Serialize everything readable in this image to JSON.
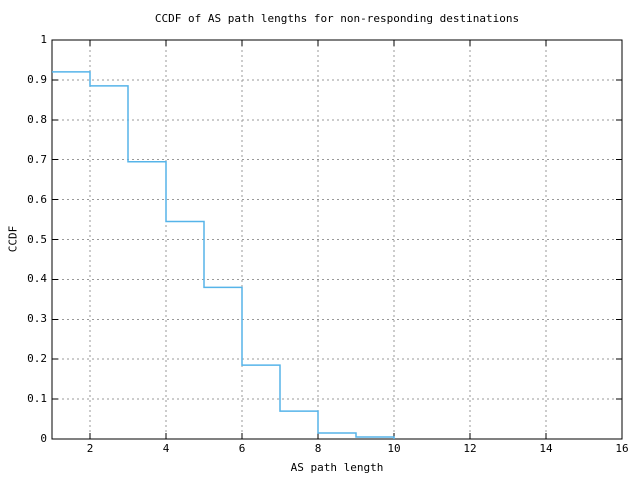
{
  "chart_data": {
    "type": "line",
    "style": "steps-post",
    "title": "CCDF of AS path lengths for non-responding destinations",
    "xlabel": "AS path length",
    "ylabel": "CCDF",
    "x": [
      1,
      2,
      3,
      4,
      5,
      6,
      7,
      8,
      9,
      10
    ],
    "y": [
      0.92,
      0.885,
      0.695,
      0.545,
      0.38,
      0.185,
      0.07,
      0.015,
      0.005,
      0
    ],
    "xlim": [
      1,
      16
    ],
    "ylim": [
      0,
      1
    ],
    "xticks": [
      2,
      4,
      6,
      8,
      10,
      12,
      14,
      16
    ],
    "xtick_labels": [
      "2",
      "4",
      "6",
      "8",
      "10",
      "12",
      "14",
      "16"
    ],
    "yticks": [
      0,
      0.1,
      0.2,
      0.3,
      0.4,
      0.5,
      0.6,
      0.7,
      0.8,
      0.9,
      1
    ],
    "ytick_labels": [
      "0",
      "0.1",
      "0.2",
      "0.3",
      "0.4",
      "0.5",
      "0.6",
      "0.7",
      "0.8",
      "0.9",
      "1"
    ],
    "grid": true,
    "legend": "none",
    "line_color": "#56b4e9",
    "grid_color": "#999999",
    "border_color": "#000000",
    "text_color": "#000000"
  }
}
